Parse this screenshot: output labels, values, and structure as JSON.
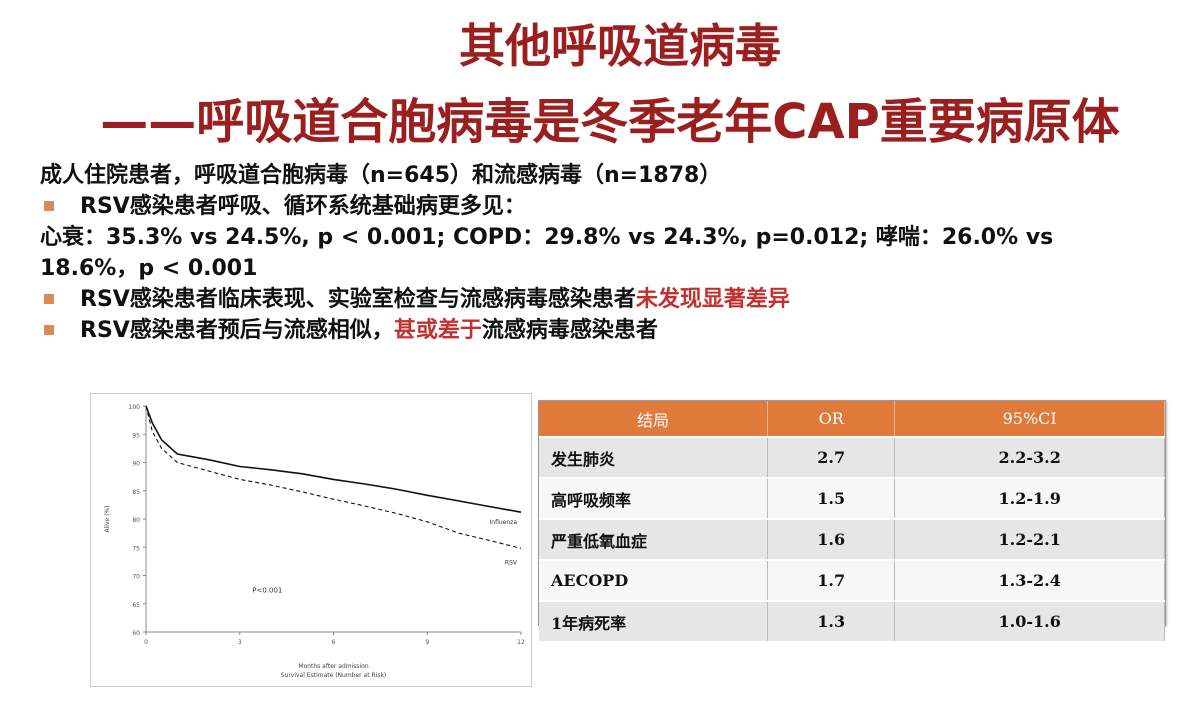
{
  "slide": {
    "title_line1": "其他呼吸道病毒",
    "title_line2": "——呼吸道合胞病毒是冬季老年CAP重要病原体",
    "intro": "成人住院患者，呼吸道合胞病毒（n=645）和流感病毒（n=1878）",
    "bullet1": "RSV感染患者呼吸、循环系统基础病更多见：",
    "stats_line1": "心衰：35.3% vs 24.5%, p < 0.001; COPD：29.8% vs 24.3%, p=0.012; 哮喘：26.0% vs",
    "stats_line2": "18.6%，p < 0.001",
    "bullet2_text": "RSV感染患者临床表现、实验室检查与流感病毒感染患者",
    "bullet2_highlight": "未发现显著差异",
    "bullet3_text": "RSV感染患者预后与流感相似，",
    "bullet3_highlight": "甚或差于",
    "bullet3_tail": "流感病毒感染患者",
    "colors": {
      "title": "#9b1f1f",
      "highlight": "#c23030",
      "bullet": "#d98a55",
      "table_header": "#e07a3a"
    }
  },
  "chart_data": {
    "type": "line",
    "ylabel": "Alive (%)",
    "xlabel": "Months after admission",
    "xlabel2": "Survival Estimate (Number at Risk)",
    "annotation": "P<0.001",
    "xlim": [
      0,
      12
    ],
    "ylim": [
      60,
      100
    ],
    "x_ticks": [
      0,
      3,
      6,
      9,
      12
    ],
    "y_ticks": [
      100,
      95,
      90,
      85,
      80,
      75,
      70,
      65,
      60
    ],
    "series": [
      {
        "name": "Influenza",
        "style": "solid",
        "x": [
          0,
          0.2,
          0.5,
          1,
          2,
          3,
          4,
          5,
          6,
          7,
          8,
          9,
          10,
          11,
          12
        ],
        "y": [
          100,
          97,
          94,
          91.5,
          90.5,
          89.3,
          88.7,
          88,
          87,
          86.2,
          85.3,
          84.2,
          83.2,
          82.2,
          81.2
        ]
      },
      {
        "name": "RSV",
        "style": "dashed",
        "x": [
          0,
          0.2,
          0.5,
          1,
          2,
          3,
          4,
          5,
          6,
          7,
          8,
          9,
          10,
          11,
          12
        ],
        "y": [
          100,
          95.5,
          92.5,
          90,
          88.5,
          87,
          86,
          84.8,
          83.5,
          82.3,
          81,
          79.5,
          77.5,
          76.2,
          74.8
        ]
      }
    ]
  },
  "table": {
    "headers": [
      "结局",
      "OR",
      "95%CI"
    ],
    "rows": [
      [
        "发生肺炎",
        "2.7",
        "2.2-3.2"
      ],
      [
        "高呼吸频率",
        "1.5",
        "1.2-1.9"
      ],
      [
        "严重低氧血症",
        "1.6",
        "1.2-2.1"
      ],
      [
        "AECOPD",
        "1.7",
        "1.3-2.4"
      ],
      [
        "1年病死率",
        "1.3",
        "1.0-1.6"
      ]
    ]
  }
}
